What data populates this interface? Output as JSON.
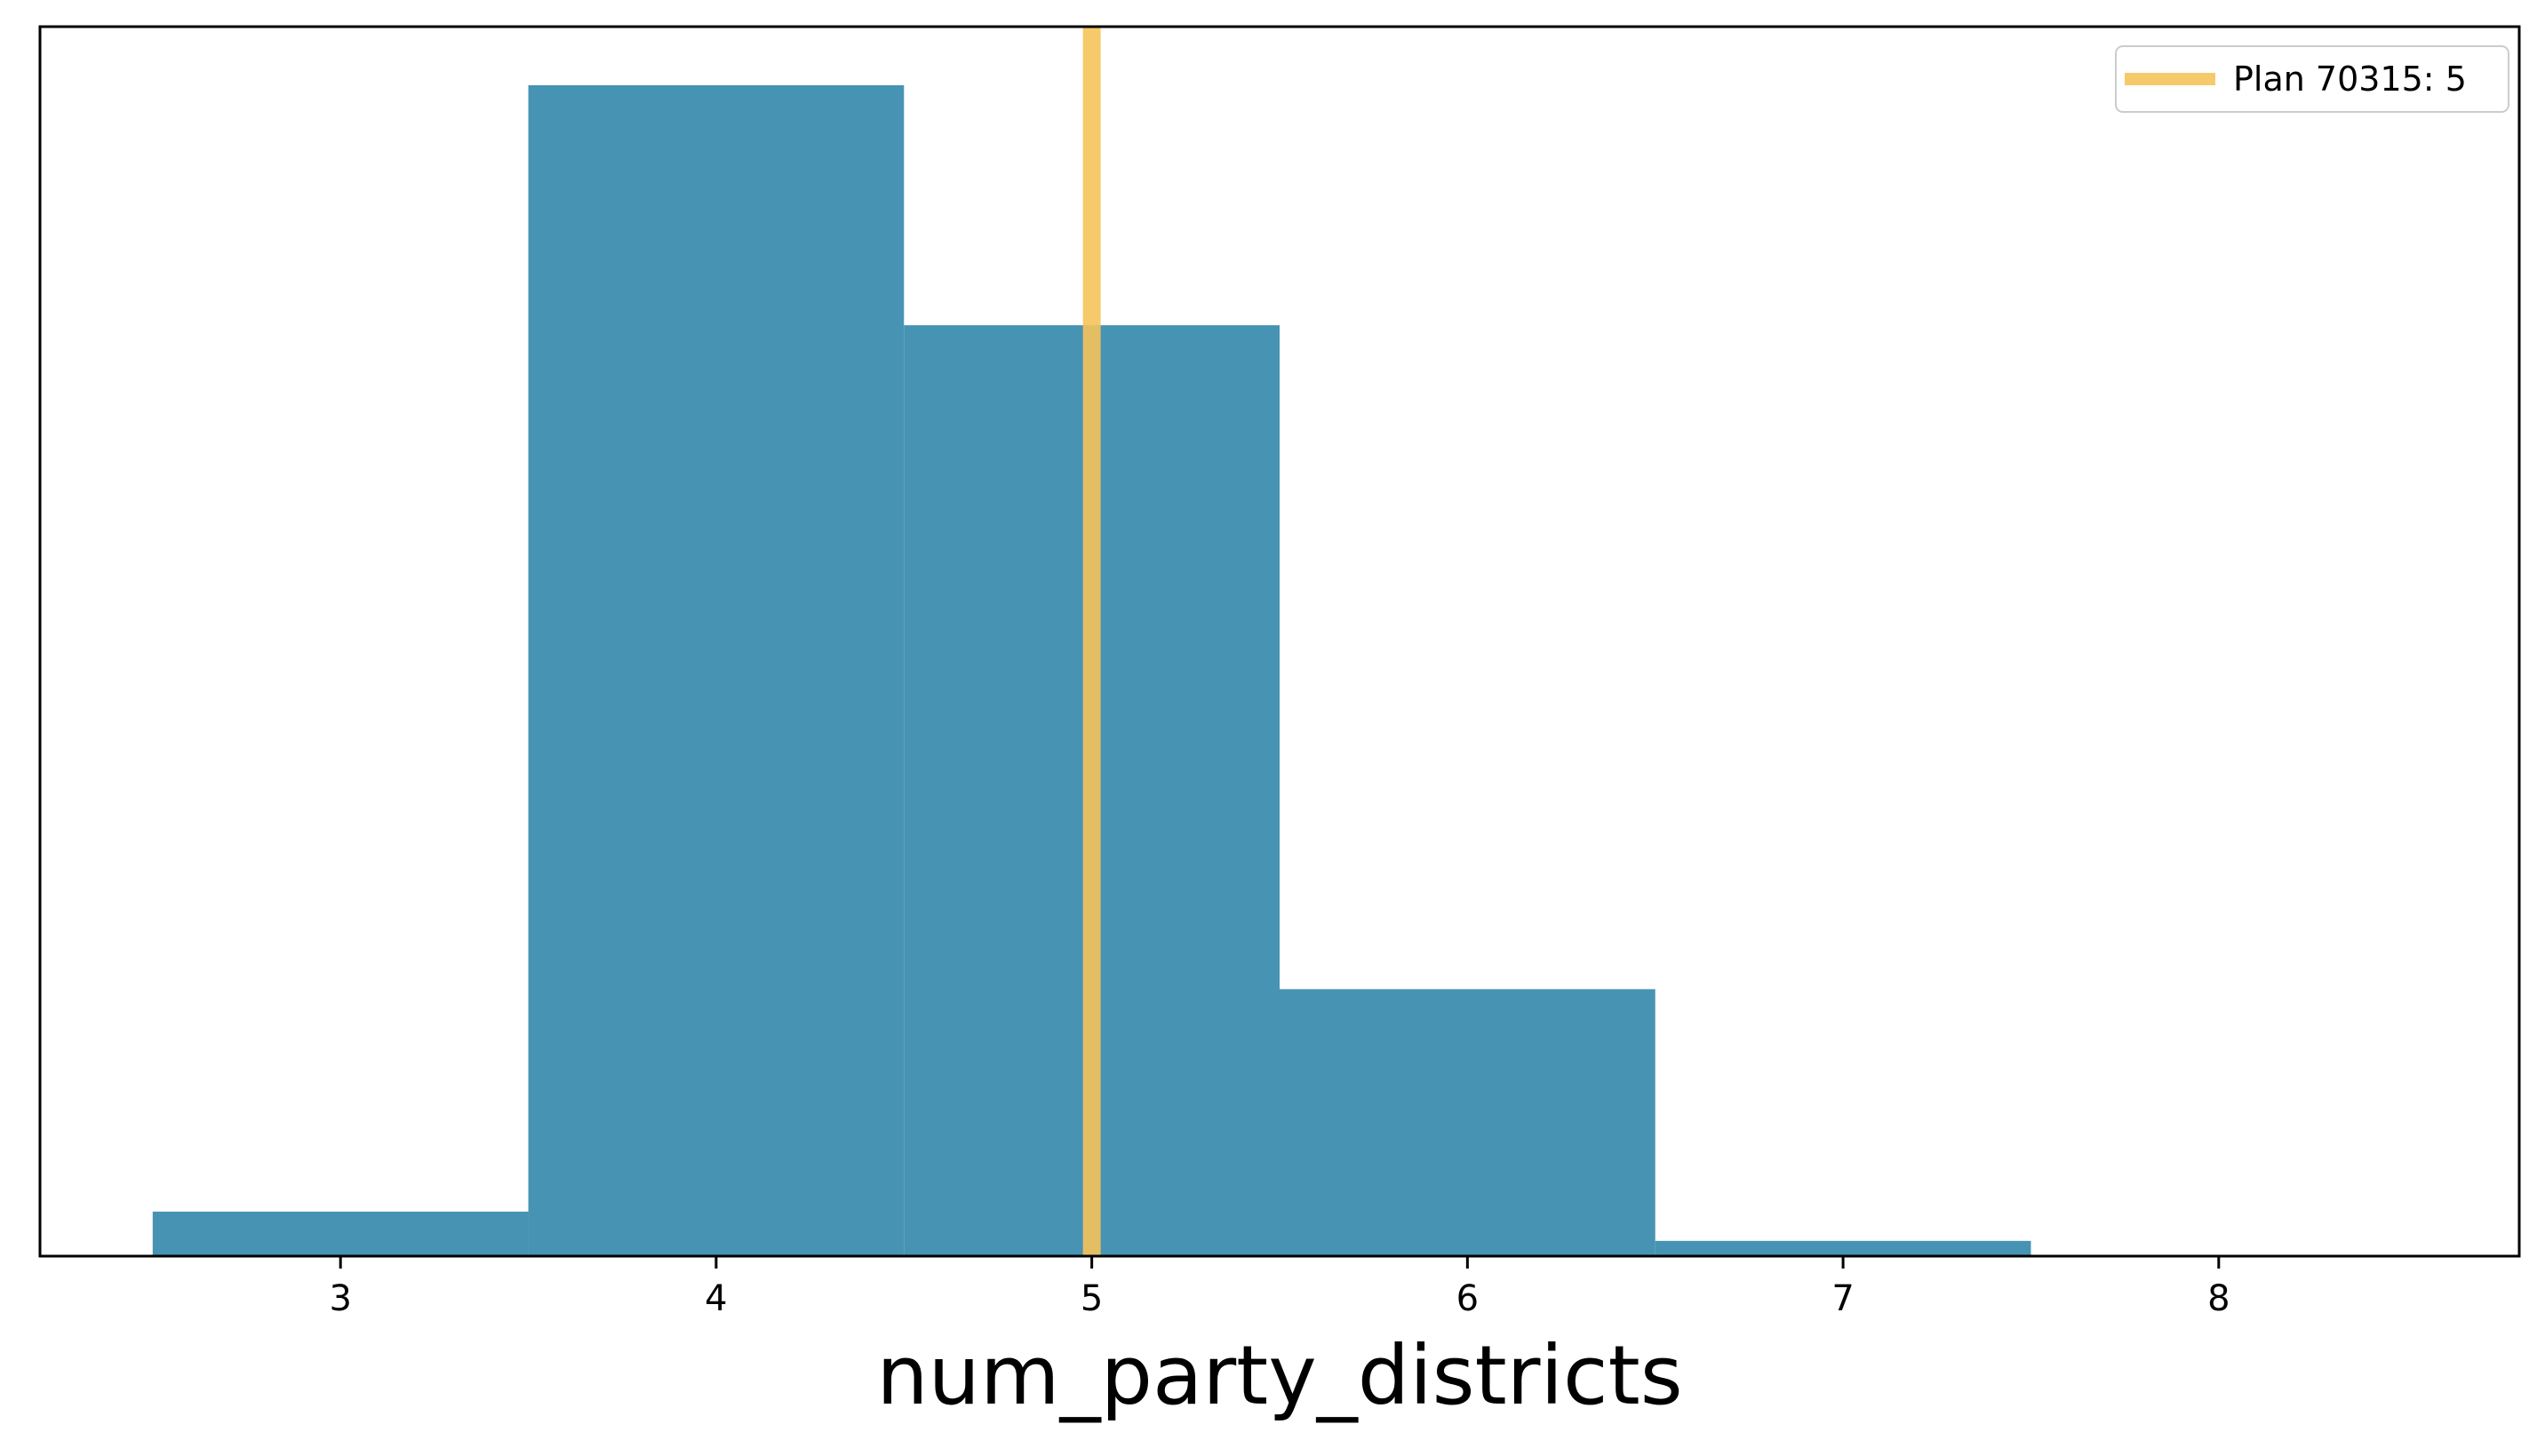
{
  "chart_data": {
    "type": "bar",
    "subtype": "histogram",
    "title": "",
    "xlabel": "num_party_districts",
    "ylabel": "",
    "bins": [
      {
        "left": 2.5,
        "right": 3.5,
        "count": 0.038
      },
      {
        "left": 3.5,
        "right": 4.5,
        "count": 1.0
      },
      {
        "left": 4.5,
        "right": 5.5,
        "count": 0.795
      },
      {
        "left": 5.5,
        "right": 6.5,
        "count": 0.228
      },
      {
        "left": 6.5,
        "right": 7.5,
        "count": 0.013
      }
    ],
    "xlim": [
      2.2,
      8.8
    ],
    "ylim": [
      0,
      1.05
    ],
    "xticks": [
      3,
      4,
      5,
      6,
      7,
      8
    ],
    "yticks_visible": false,
    "grid": false,
    "bar_color": "#4793b3",
    "reference_line": {
      "x": 5,
      "label": "Plan 70315: 5",
      "color": "#f5c35a"
    },
    "legend": {
      "placement": "top-right",
      "entries": [
        "Plan 70315: 5"
      ]
    }
  }
}
